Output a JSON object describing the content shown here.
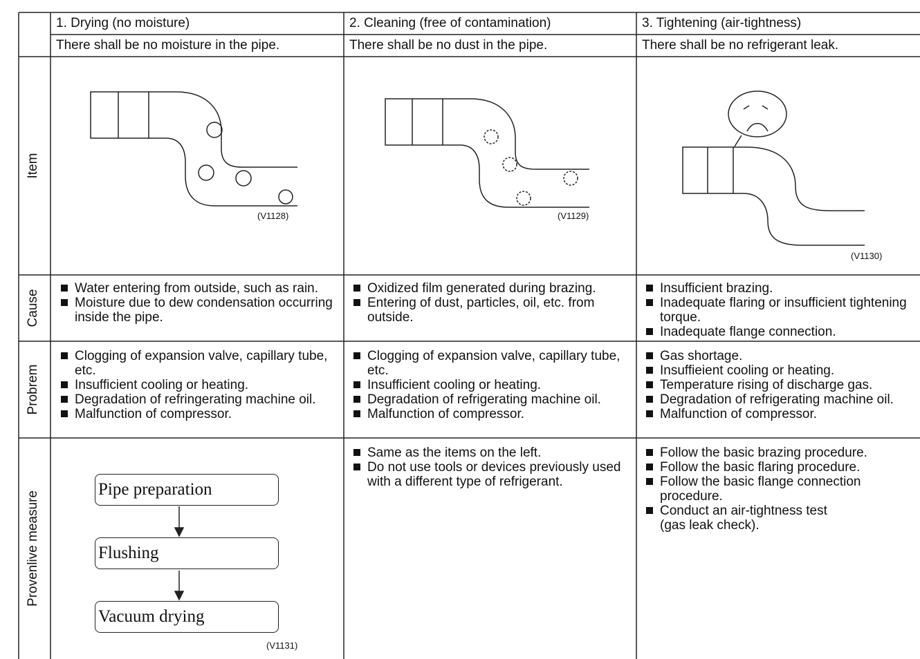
{
  "header": {
    "titles": [
      "1. Drying (no moisture)",
      "2. Cleaning (free of contamination)",
      "3. Tightening (air-tightness)"
    ],
    "requirements": [
      "There shall be no moisture in the pipe.",
      "There shall be no dust in the pipe.",
      "There shall be no refrigerant leak."
    ]
  },
  "item": {
    "label": "Item",
    "figures": [
      "(V1128)",
      "(V1129)",
      "(V1130)"
    ]
  },
  "cause": {
    "label": "Cause",
    "cells": [
      [
        "Water entering from outside, such as rain.",
        "Moisture due to dew condensation occurring inside the pipe."
      ],
      [
        "Oxidized film generated during brazing.",
        "Entering of dust, particles, oil, etc. from outside."
      ],
      [
        "Insufficient brazing.",
        "Inadequate flaring or insufficient tightening torque.",
        "Inadequate flange connection."
      ]
    ]
  },
  "problem": {
    "label": "Probrem",
    "cells": [
      [
        "Clogging of expansion valve, capillary tube, etc.",
        "Insufficient cooling or heating.",
        "Degradation of refringerating machine oil.",
        "Malfunction of compressor."
      ],
      [
        "Clogging of expansion valve, capillary tube, etc.",
        "Insufficient cooling or heating.",
        "Degradation of refrigerating machine oil.",
        "Malfunction of compressor."
      ],
      [
        "Gas shortage.",
        "Insuffieient cooling or heating.",
        "Temperature rising of discharge gas.",
        "Degradation of refrigerating machine oil.",
        "Malfunction of compressor."
      ]
    ]
  },
  "measure": {
    "label": "Provenlive measure",
    "flow": [
      "Pipe preparation",
      "Flushing",
      "Vacuum drying"
    ],
    "figure": "(V1131)",
    "cells": [
      [
        "Same as the items on the left.",
        "Do not use tools or devices previously used with a different type of refrigerant."
      ],
      [
        "Follow the basic brazing procedure.",
        "Follow the basic flaring procedure.",
        "Follow the basic flange connection procedure.",
        "Conduct an air-tightness test\n(gas leak check)."
      ]
    ]
  }
}
